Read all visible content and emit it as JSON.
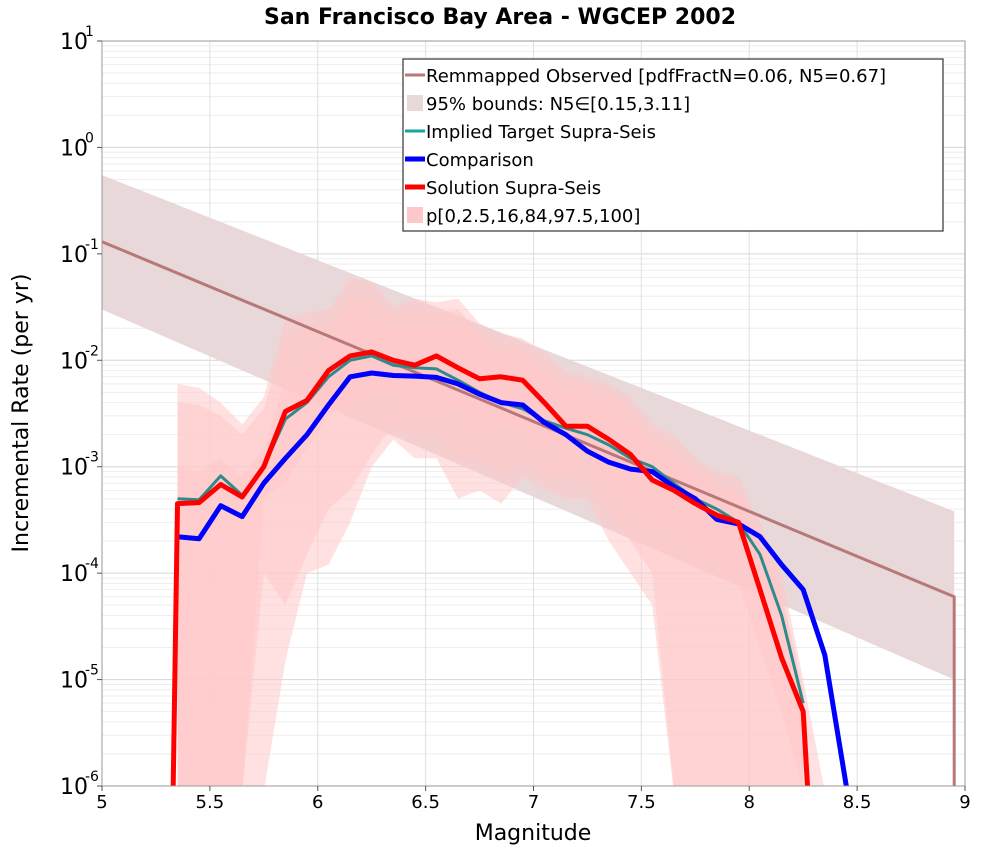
{
  "chart_data": {
    "type": "line",
    "title": "San Francisco Bay Area - WGCEP 2002",
    "xlabel": "Magnitude",
    "ylabel": "Incremental Rate (per yr)",
    "xlim": [
      5,
      9
    ],
    "ylim": [
      1e-06,
      10
    ],
    "yscale": "log",
    "grid": true,
    "legend_position": "top-right",
    "x_ticks": [
      "5",
      "5.5",
      "6",
      "6.5",
      "7",
      "7.5",
      "8",
      "8.5",
      "9"
    ],
    "y_ticks": [
      {
        "base": "10",
        "exp": "-6",
        "value": 1e-06
      },
      {
        "base": "10",
        "exp": "-5",
        "value": 1e-05
      },
      {
        "base": "10",
        "exp": "-4",
        "value": 0.0001
      },
      {
        "base": "10",
        "exp": "-3",
        "value": 0.001
      },
      {
        "base": "10",
        "exp": "-2",
        "value": 0.01
      },
      {
        "base": "10",
        "exp": "-1",
        "value": 0.1
      },
      {
        "base": "10",
        "exp": "0",
        "value": 1
      },
      {
        "base": "10",
        "exp": "1",
        "value": 10
      }
    ],
    "legend": [
      {
        "label": "Remmapped Observed [pdfFractN=0.06, N5=0.67]",
        "color": "#b87878",
        "kind": "line"
      },
      {
        "label": "95% bounds: N5∈[0.15,3.11]",
        "color": "#e8d8da",
        "kind": "box"
      },
      {
        "label": "Implied Target Supra-Seis",
        "color": "#1aa3a3",
        "kind": "line"
      },
      {
        "label": "Comparison",
        "color": "#0000ff",
        "kind": "thick"
      },
      {
        "label": "Solution Supra-Seis",
        "color": "#ff0000",
        "kind": "thick"
      },
      {
        "label": "p[0,2.5,16,84,97.5,100]",
        "color": "#ffc8c8",
        "kind": "box"
      }
    ],
    "series": [
      {
        "name": "Remmapped Observed [pdfFractN=0.06, N5=0.67]",
        "color": "#b87878",
        "x": [
          5.0,
          8.95,
          8.95
        ],
        "y": [
          0.13,
          6e-05,
          1e-07
        ]
      },
      {
        "name": "Implied Target Supra-Seis",
        "color": "#2e8b8b",
        "x": [
          5.35,
          5.45,
          5.55,
          5.65,
          5.75,
          5.85,
          5.95,
          6.05,
          6.15,
          6.25,
          6.35,
          6.45,
          6.55,
          6.65,
          6.75,
          6.85,
          6.95,
          7.05,
          7.15,
          7.25,
          7.35,
          7.45,
          7.55,
          7.65,
          7.75,
          7.85,
          7.95,
          8.05,
          8.15,
          8.25
        ],
        "y": [
          0.0005,
          0.00049,
          0.00082,
          0.00054,
          0.001,
          0.0028,
          0.004,
          0.007,
          0.01,
          0.011,
          0.009,
          0.0085,
          0.0083,
          0.0065,
          0.005,
          0.004,
          0.0035,
          0.0027,
          0.0023,
          0.002,
          0.0016,
          0.0012,
          0.001,
          0.0007,
          0.0005,
          0.0004,
          0.0003,
          0.00015,
          4e-05,
          6e-06
        ]
      },
      {
        "name": "Comparison",
        "color": "#0000ff",
        "x": [
          5.35,
          5.45,
          5.55,
          5.65,
          5.75,
          5.85,
          5.95,
          6.05,
          6.15,
          6.25,
          6.35,
          6.45,
          6.55,
          6.65,
          6.75,
          6.85,
          6.95,
          7.05,
          7.15,
          7.25,
          7.35,
          7.45,
          7.55,
          7.65,
          7.75,
          7.85,
          7.95,
          8.05,
          8.15,
          8.25,
          8.35,
          8.45
        ],
        "y": [
          0.00022,
          0.00021,
          0.00043,
          0.00034,
          0.0007,
          0.0012,
          0.002,
          0.0038,
          0.007,
          0.0076,
          0.0072,
          0.0071,
          0.0069,
          0.006,
          0.0048,
          0.004,
          0.0038,
          0.0026,
          0.002,
          0.0014,
          0.0011,
          0.00095,
          0.0009,
          0.00065,
          0.0005,
          0.00032,
          0.00029,
          0.00022,
          0.00012,
          7e-05,
          1.7e-05,
          1e-06
        ]
      },
      {
        "name": "Solution Supra-Seis",
        "color": "#ff0000",
        "x": [
          5.33,
          5.35,
          5.45,
          5.55,
          5.65,
          5.75,
          5.85,
          5.95,
          6.05,
          6.15,
          6.25,
          6.35,
          6.45,
          6.55,
          6.65,
          6.75,
          6.85,
          6.95,
          7.05,
          7.15,
          7.25,
          7.35,
          7.45,
          7.55,
          7.65,
          7.75,
          7.85,
          7.95,
          8.05,
          8.15,
          8.25,
          8.27
        ],
        "y": [
          1e-06,
          0.00045,
          0.00046,
          0.00068,
          0.00052,
          0.001,
          0.0033,
          0.0042,
          0.008,
          0.011,
          0.012,
          0.01,
          0.009,
          0.011,
          0.0085,
          0.0067,
          0.007,
          0.0065,
          0.004,
          0.0024,
          0.0024,
          0.0018,
          0.0013,
          0.00075,
          0.0006,
          0.00045,
          0.00035,
          0.0003,
          7e-05,
          1.6e-05,
          5e-06,
          1e-06
        ]
      }
    ],
    "bands": [
      {
        "name": "95% bounds: N5∈[0.15,3.11]",
        "color": "#e8d8da",
        "x": [
          5.0,
          8.95
        ],
        "low": [
          0.03,
          1e-05
        ],
        "high": [
          0.55,
          0.00038
        ]
      },
      {
        "name": "p[0,2.5,16,84,97.5,100]",
        "color": "#ffc8c8",
        "opacity": 0.55,
        "x": [
          5.35,
          5.45,
          5.55,
          5.65,
          5.75,
          5.85,
          5.95,
          6.05,
          6.15,
          6.25,
          6.35,
          6.45,
          6.55,
          6.65,
          6.75,
          6.85,
          6.95,
          7.05,
          7.15,
          7.25,
          7.35,
          7.45,
          7.55,
          7.65,
          7.75,
          7.85,
          7.95,
          8.05,
          8.15,
          8.25,
          8.35
        ],
        "low": [
          1e-07,
          1e-07,
          1e-07,
          1e-07,
          1e-07,
          1.5e-05,
          0.0001,
          0.00012,
          0.0003,
          0.001,
          0.0018,
          0.0012,
          0.0012,
          0.0005,
          0.0006,
          0.00045,
          0.0008,
          0.0006,
          0.0005,
          0.0005,
          0.0002,
          0.0001,
          5e-05,
          1e-07,
          1e-07,
          1e-07,
          1e-07,
          1e-07,
          1e-07,
          1e-07,
          1e-07
        ],
        "high": [
          0.006,
          0.0055,
          0.004,
          0.0025,
          0.0045,
          0.025,
          0.028,
          0.03,
          0.06,
          0.055,
          0.032,
          0.038,
          0.035,
          0.038,
          0.022,
          0.018,
          0.016,
          0.012,
          0.008,
          0.007,
          0.006,
          0.0045,
          0.0025,
          0.002,
          0.0012,
          0.0009,
          0.0008,
          0.0003,
          0.0001,
          1e-05,
          1e-07
        ]
      },
      {
        "name": "p-inner-2.5-97.5",
        "color": "#ffc8c8",
        "opacity": 0.55,
        "x": [
          5.35,
          5.45,
          5.55,
          5.65,
          5.75,
          5.85,
          5.95,
          6.05,
          6.15,
          6.25,
          6.35,
          6.45,
          6.55,
          6.65,
          6.75,
          6.85,
          6.95,
          7.05,
          7.15,
          7.25,
          7.35,
          7.45,
          7.55,
          7.65,
          7.75,
          7.85,
          7.95,
          8.05,
          8.15,
          8.25
        ],
        "low": [
          1e-07,
          1e-07,
          1e-07,
          1e-07,
          0.0001,
          5e-05,
          0.00015,
          0.0004,
          0.0006,
          0.0013,
          0.0025,
          0.002,
          0.002,
          0.0012,
          0.0012,
          0.0009,
          0.0011,
          0.0008,
          0.0008,
          0.0007,
          0.0004,
          0.0002,
          0.0001,
          1e-06,
          1e-07,
          1e-07,
          1e-07,
          1e-07,
          1e-07,
          1e-07
        ],
        "high": [
          0.004,
          0.0038,
          0.003,
          0.002,
          0.0035,
          0.016,
          0.02,
          0.022,
          0.04,
          0.038,
          0.026,
          0.03,
          0.028,
          0.03,
          0.018,
          0.014,
          0.013,
          0.0095,
          0.0065,
          0.006,
          0.005,
          0.0035,
          0.002,
          0.0015,
          0.001,
          0.0007,
          0.0006,
          0.00022,
          7e-05,
          8e-06
        ]
      },
      {
        "name": "p-inner-16-84",
        "color": "#ffc8c8",
        "opacity": 0.55,
        "x": [
          5.35,
          5.45,
          5.55,
          5.65,
          5.75,
          5.85,
          5.95,
          6.05,
          6.15,
          6.25,
          6.35,
          6.45,
          6.55,
          6.65,
          6.75,
          6.85,
          6.95,
          7.05,
          7.15,
          7.25,
          7.35,
          7.45,
          7.55,
          7.65,
          7.75,
          7.85,
          7.95,
          8.05,
          8.15,
          8.25
        ],
        "low": [
          1e-07,
          1e-07,
          1e-07,
          1e-07,
          0.0005,
          0.0007,
          0.0015,
          0.003,
          0.004,
          0.005,
          0.005,
          0.004,
          0.0045,
          0.0035,
          0.0028,
          0.0025,
          0.0025,
          0.0018,
          0.0015,
          0.0013,
          0.0008,
          0.0006,
          0.00035,
          0.00025,
          0.0002,
          0.00012,
          8e-05,
          2e-05,
          5e-06,
          1e-07
        ],
        "high": [
          0.001,
          0.0009,
          0.0012,
          0.0008,
          0.0015,
          0.0065,
          0.0085,
          0.016,
          0.024,
          0.025,
          0.019,
          0.019,
          0.021,
          0.019,
          0.015,
          0.011,
          0.011,
          0.0075,
          0.005,
          0.0045,
          0.0035,
          0.0025,
          0.0015,
          0.0012,
          0.0008,
          0.0006,
          0.0005,
          0.00018,
          6e-05,
          7e-06
        ]
      }
    ]
  }
}
